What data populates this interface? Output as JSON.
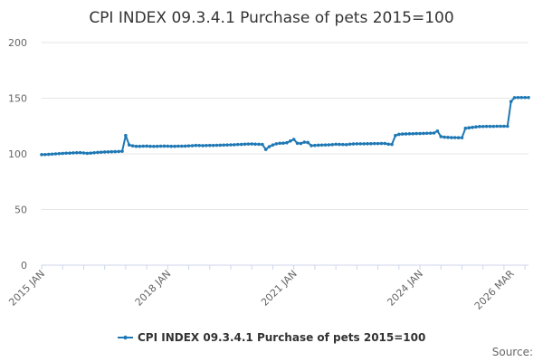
{
  "source_label": "Source:",
  "chart_data": {
    "type": "line",
    "title": "CPI INDEX 09.3.4.1 Purchase of pets 2015=100",
    "xlabel": "",
    "ylabel": "",
    "ylim": [
      0,
      200
    ],
    "yticks": [
      0,
      50,
      100,
      150,
      200
    ],
    "x_start": "2015 JAN",
    "x_end": "2026 MAR",
    "xtick_labels": [
      "2015 JAN",
      "2018 JAN",
      "2021 JAN",
      "2024 JAN",
      "2026 MAR"
    ],
    "grid": true,
    "legend_position": "bottom",
    "color": "#1f78b4",
    "series": [
      {
        "name": "CPI INDEX 09.3.4.1 Purchase of pets 2015=100",
        "values": [
          99.3,
          99.4,
          99.6,
          99.8,
          100.0,
          100.2,
          100.4,
          100.6,
          100.7,
          100.9,
          101.0,
          101.1,
          100.8,
          100.5,
          100.7,
          101.0,
          101.3,
          101.5,
          101.7,
          101.8,
          101.9,
          102.0,
          102.1,
          102.3,
          116.5,
          108.0,
          107.2,
          106.8,
          106.8,
          106.9,
          107.0,
          106.8,
          106.7,
          106.8,
          106.9,
          107.0,
          106.9,
          106.8,
          106.8,
          106.9,
          106.9,
          107.0,
          107.2,
          107.3,
          107.6,
          107.5,
          107.4,
          107.5,
          107.6,
          107.6,
          107.7,
          107.8,
          107.9,
          108.0,
          108.1,
          108.2,
          108.4,
          108.5,
          108.7,
          108.8,
          108.9,
          108.7,
          108.6,
          108.5,
          104.0,
          106.5,
          108.0,
          109.0,
          109.5,
          109.6,
          110.0,
          111.5,
          113.0,
          109.5,
          109.3,
          110.5,
          110.2,
          107.4,
          107.6,
          107.8,
          107.9,
          108.0,
          108.1,
          108.3,
          108.6,
          108.5,
          108.4,
          108.3,
          108.7,
          108.9,
          109.0,
          109.0,
          109.0,
          109.1,
          109.1,
          109.2,
          109.2,
          109.3,
          109.3,
          108.7,
          108.5,
          116.5,
          117.5,
          117.8,
          117.9,
          118.0,
          118.1,
          118.2,
          118.3,
          118.4,
          118.5,
          118.6,
          118.7,
          120.5,
          115.5,
          115.0,
          114.8,
          114.6,
          114.6,
          114.5,
          114.5,
          123.0,
          123.4,
          123.8,
          124.2,
          124.5,
          124.6,
          124.7,
          124.7,
          124.7,
          124.8,
          124.8,
          124.8,
          124.8,
          147.0,
          150.5,
          150.6,
          150.6,
          150.6,
          150.6
        ]
      }
    ]
  }
}
